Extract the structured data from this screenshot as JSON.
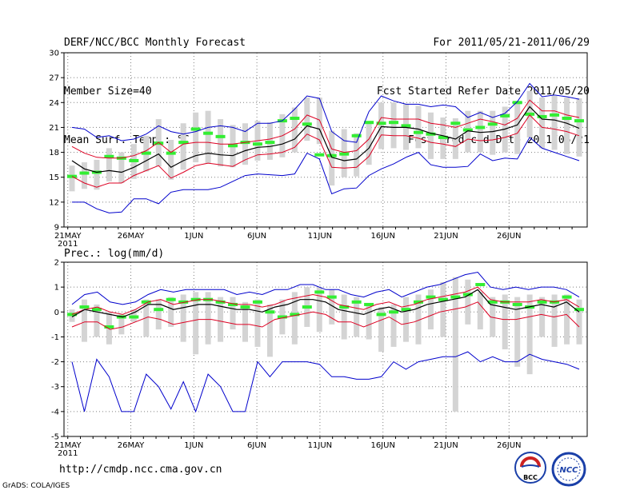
{
  "header": {
    "left": [
      "DERF/NCC/BCC Monthly Forecast",
      "Member Size=40",
      "Mean Surf. Temp.: °C"
    ],
    "right": [
      "For 2011/05/21-2011/06/29",
      "Fcst Started Refer Date 2011/05/20",
      "Fcst Produced Date 2011/05/21"
    ]
  },
  "footer": {
    "url": "http://cmdp.ncc.cma.gov.cn",
    "credit": "GrADS: COLA/IGES"
  },
  "logos": {
    "bcc": "BCC",
    "ncc": "NCC"
  },
  "chart_data": [
    {
      "type": "line",
      "title": "Mean Surf. Temp.: °C",
      "ylim": [
        9,
        30
      ],
      "yticks": [
        "9",
        "12",
        "15",
        "18",
        "21",
        "24",
        "27",
        "30"
      ],
      "xticks": [
        "21MAY",
        "26MAY",
        "1JUN",
        "6JUN",
        "11JUN",
        "16JUN",
        "21JUN",
        "26JUN"
      ],
      "xyear": "2011",
      "days": 40,
      "series": [
        {
          "name": "max",
          "values": [
            21.0,
            20.8,
            19.8,
            20.0,
            19.4,
            19.6,
            20.2,
            21.2,
            20.5,
            20.2,
            20.5,
            21.0,
            21.2,
            21.0,
            20.5,
            21.5,
            21.5,
            21.8,
            23.2,
            24.8,
            24.5,
            20.5,
            19.4,
            19.2,
            22.9,
            24.8,
            24.2,
            23.8,
            23.8,
            23.5,
            23.7,
            23.5,
            22.2,
            22.8,
            22.2,
            22.7,
            24.1,
            26.3,
            24.7,
            24.9,
            24.7,
            24.4
          ]
        },
        {
          "name": "upper",
          "values": [
            18.7,
            17.9,
            17.4,
            17.3,
            17.3,
            17.6,
            18.2,
            19.2,
            18.0,
            19.0,
            19.2,
            19.2,
            19.0,
            19.0,
            19.2,
            19.4,
            19.6,
            20.0,
            20.8,
            22.5,
            21.9,
            18.4,
            18.0,
            18.2,
            19.6,
            22.2,
            22.0,
            22.0,
            22.0,
            21.5,
            21.3,
            21.0,
            21.5,
            22.0,
            21.7,
            21.3,
            22.1,
            24.3,
            23.0,
            23.0,
            22.5,
            22.2
          ]
        },
        {
          "name": "mean",
          "values": [
            17.0,
            16.0,
            15.6,
            15.8,
            15.6,
            16.2,
            17.0,
            17.8,
            16.2,
            17.0,
            17.6,
            17.9,
            17.7,
            17.6,
            18.2,
            18.6,
            18.7,
            19.0,
            19.6,
            21.2,
            20.8,
            17.4,
            17.0,
            17.2,
            18.5,
            21.1,
            21.0,
            21.0,
            20.8,
            20.3,
            20.0,
            19.6,
            20.6,
            20.4,
            20.5,
            20.8,
            21.3,
            23.5,
            22.0,
            21.9,
            21.5,
            20.9
          ]
        },
        {
          "name": "lower",
          "values": [
            15.1,
            14.3,
            13.8,
            14.3,
            14.3,
            15.2,
            15.8,
            16.4,
            14.9,
            15.6,
            16.4,
            16.7,
            16.5,
            16.3,
            17.1,
            17.7,
            17.8,
            18.0,
            18.6,
            20.2,
            19.5,
            16.2,
            16.1,
            16.2,
            17.5,
            20.1,
            20.0,
            20.0,
            19.7,
            19.2,
            19.0,
            18.7,
            19.6,
            19.4,
            19.5,
            19.8,
            20.3,
            22.5,
            21.0,
            20.8,
            20.5,
            20.0
          ]
        },
        {
          "name": "min",
          "values": [
            12.0,
            12.0,
            11.2,
            10.7,
            10.8,
            12.4,
            12.4,
            11.8,
            13.2,
            13.5,
            13.5,
            13.5,
            13.8,
            14.5,
            15.2,
            15.4,
            15.3,
            15.2,
            15.4,
            17.9,
            17.2,
            13.0,
            13.6,
            13.7,
            15.2,
            16.0,
            16.6,
            17.4,
            18.0,
            16.5,
            16.2,
            16.2,
            16.3,
            17.8,
            17.0,
            17.3,
            17.2,
            19.8,
            18.5,
            18.0,
            17.5,
            17.0
          ]
        }
      ],
      "observed": [
        15.1,
        15.5,
        15.6,
        17.5,
        17.3,
        17.0,
        17.9,
        19.1,
        17.9,
        19.2,
        20.8,
        20.3,
        19.9,
        18.8,
        19.2,
        19.0,
        19.2,
        21.8,
        22.1,
        21.4,
        17.7,
        17.6,
        17.8,
        20.0,
        21.6,
        21.5,
        21.6,
        21.2,
        20.4,
        20.2,
        19.8,
        21.5,
        20.7,
        21.0,
        21.4,
        22.4,
        24.0,
        22.6,
        22.3,
        22.5,
        22.1,
        21.8
      ],
      "ranges": [
        [
          13.3,
          16.4
        ],
        [
          13.6,
          16.8
        ],
        [
          13.5,
          17.1
        ],
        [
          14.5,
          18.5
        ],
        [
          14.3,
          18.0
        ],
        [
          14.8,
          19.0
        ],
        [
          15.7,
          20.0
        ],
        [
          16.3,
          22.0
        ],
        [
          14.7,
          19.5
        ],
        [
          15.9,
          21.5
        ],
        [
          16.8,
          22.8
        ],
        [
          16.7,
          23.0
        ],
        [
          16.3,
          22.0
        ],
        [
          16.2,
          21.3
        ],
        [
          16.5,
          21.5
        ],
        [
          17.0,
          21.8
        ],
        [
          17.1,
          21.6
        ],
        [
          17.4,
          22.6
        ],
        [
          18.0,
          23.4
        ],
        [
          19.4,
          24.6
        ],
        [
          19.0,
          24.6
        ],
        [
          14.0,
          20.6
        ],
        [
          15.0,
          20.8
        ],
        [
          15.1,
          20.3
        ],
        [
          16.5,
          21.6
        ],
        [
          18.4,
          24.0
        ],
        [
          18.5,
          24.0
        ],
        [
          18.3,
          23.8
        ],
        [
          18.5,
          23.6
        ],
        [
          17.2,
          22.8
        ],
        [
          17.2,
          22.2
        ],
        [
          17.2,
          22.1
        ],
        [
          18.0,
          23.0
        ],
        [
          18.0,
          23.0
        ],
        [
          17.7,
          23.0
        ],
        [
          18.0,
          23.5
        ],
        [
          17.8,
          24.0
        ],
        [
          19.8,
          25.4
        ],
        [
          18.5,
          24.6
        ],
        [
          18.3,
          24.8
        ],
        [
          17.8,
          24.6
        ],
        [
          17.5,
          24.5
        ]
      ]
    },
    {
      "type": "line",
      "title": "Prec.: log(mm/d)",
      "ylim": [
        -5,
        2
      ],
      "yticks": [
        "-5",
        "-4",
        "-3",
        "-2",
        "-1",
        "0",
        "1",
        "2"
      ],
      "xticks": [
        "21MAY",
        "26MAY",
        "1JUN",
        "6JUN",
        "11JUN",
        "16JUN",
        "21JUN",
        "26JUN"
      ],
      "xyear": "2011",
      "days": 40,
      "series": [
        {
          "name": "max",
          "values": [
            0.3,
            0.7,
            0.8,
            0.4,
            0.3,
            0.4,
            0.7,
            0.9,
            0.8,
            0.9,
            0.9,
            0.9,
            0.9,
            0.7,
            0.8,
            0.7,
            0.9,
            0.9,
            1.1,
            1.1,
            0.9,
            0.9,
            0.7,
            0.6,
            0.8,
            0.9,
            0.6,
            0.8,
            1.0,
            1.1,
            1.3,
            1.5,
            1.6,
            1.0,
            0.9,
            1.0,
            0.9,
            1.0,
            1.0,
            0.9,
            0.6
          ]
        },
        {
          "name": "upper",
          "values": [
            -0.1,
            0.1,
            0.2,
            0.0,
            -0.1,
            0.1,
            0.4,
            0.5,
            0.3,
            0.4,
            0.5,
            0.5,
            0.4,
            0.3,
            0.3,
            0.2,
            0.3,
            0.5,
            0.6,
            0.7,
            0.6,
            0.3,
            0.2,
            0.1,
            0.3,
            0.4,
            0.2,
            0.3,
            0.5,
            0.6,
            0.7,
            0.8,
            1.0,
            0.5,
            0.4,
            0.4,
            0.4,
            0.5,
            0.4,
            0.5,
            0.2
          ]
        },
        {
          "name": "mean",
          "values": [
            -0.2,
            0.1,
            0.0,
            -0.1,
            -0.2,
            0.0,
            0.3,
            0.3,
            0.1,
            0.2,
            0.3,
            0.3,
            0.2,
            0.1,
            0.1,
            0.0,
            0.2,
            0.3,
            0.5,
            0.5,
            0.4,
            0.1,
            0.0,
            -0.1,
            0.1,
            0.2,
            0.0,
            0.1,
            0.3,
            0.4,
            0.5,
            0.6,
            0.9,
            0.3,
            0.2,
            0.1,
            0.2,
            0.3,
            0.2,
            0.4,
            0.0
          ]
        },
        {
          "name": "lower",
          "values": [
            -0.6,
            -0.4,
            -0.4,
            -0.7,
            -0.6,
            -0.4,
            -0.2,
            -0.3,
            -0.5,
            -0.4,
            -0.3,
            -0.3,
            -0.4,
            -0.5,
            -0.5,
            -0.6,
            -0.3,
            -0.2,
            -0.1,
            0.0,
            -0.1,
            -0.4,
            -0.4,
            -0.6,
            -0.4,
            -0.2,
            -0.5,
            -0.4,
            -0.2,
            0.0,
            0.1,
            0.2,
            0.4,
            -0.2,
            -0.3,
            -0.3,
            -0.2,
            -0.1,
            -0.2,
            -0.1,
            -0.6
          ]
        },
        {
          "name": "min",
          "values": [
            -2.0,
            -4.0,
            -1.9,
            -2.6,
            -4.0,
            -4.0,
            -2.5,
            -3.0,
            -3.9,
            -2.8,
            -4.0,
            -2.5,
            -3.0,
            -4.0,
            -4.0,
            -2.0,
            -2.6,
            -2.0,
            -2.0,
            -2.0,
            -2.1,
            -2.6,
            -2.6,
            -2.7,
            -2.7,
            -2.6,
            -2.0,
            -2.3,
            -2.0,
            -1.9,
            -1.8,
            -1.8,
            -1.6,
            -2.0,
            -1.8,
            -2.0,
            -2.0,
            -1.7,
            -1.9,
            -2.0,
            -2.1,
            -2.3
          ]
        }
      ],
      "observed": [
        -0.1,
        0.2,
        0.1,
        -0.6,
        -0.2,
        -0.2,
        0.4,
        0.1,
        0.5,
        0.4,
        0.5,
        0.5,
        0.4,
        0.3,
        0.2,
        0.4,
        0.0,
        -0.2,
        -0.1,
        0.2,
        0.8,
        0.6,
        0.2,
        0.4,
        0.3,
        -0.1,
        0.0,
        0.1,
        0.4,
        0.6,
        0.5,
        0.6,
        0.7,
        1.1,
        0.4,
        0.4,
        0.3,
        0.2,
        0.4,
        0.4,
        0.6,
        0.1
      ],
      "ranges": [
        [
          -0.4,
          0.1
        ],
        [
          -1.2,
          0.5
        ],
        [
          -1.0,
          0.3
        ],
        [
          -1.3,
          0.0
        ],
        [
          -0.9,
          -0.1
        ],
        [
          -0.4,
          0.1
        ],
        [
          -1.0,
          0.5
        ],
        [
          -0.7,
          0.5
        ],
        [
          -0.6,
          0.6
        ],
        [
          -1.2,
          0.7
        ],
        [
          -1.7,
          0.8
        ],
        [
          -1.3,
          0.8
        ],
        [
          -1.2,
          0.6
        ],
        [
          -0.7,
          0.6
        ],
        [
          -1.2,
          0.4
        ],
        [
          -1.4,
          0.5
        ],
        [
          -1.8,
          0.3
        ],
        [
          -0.9,
          0.5
        ],
        [
          -1.3,
          0.8
        ],
        [
          -0.6,
          1.0
        ],
        [
          -0.8,
          1.0
        ],
        [
          -0.5,
          0.9
        ],
        [
          -1.1,
          0.7
        ],
        [
          -1.0,
          0.6
        ],
        [
          -1.1,
          0.3
        ],
        [
          -1.6,
          0.2
        ],
        [
          -1.4,
          0.3
        ],
        [
          -1.2,
          0.6
        ],
        [
          -1.3,
          0.7
        ],
        [
          -0.7,
          0.9
        ],
        [
          -1.0,
          1.2
        ],
        [
          -4.0,
          1.4
        ],
        [
          -0.5,
          1.3
        ],
        [
          -0.7,
          0.8
        ],
        [
          -1.0,
          0.6
        ],
        [
          -1.5,
          0.7
        ],
        [
          -2.2,
          0.6
        ],
        [
          -2.5,
          0.7
        ],
        [
          -1.0,
          0.6
        ],
        [
          -1.4,
          0.7
        ],
        [
          -1.3,
          0.7
        ],
        [
          -1.3,
          0.5
        ]
      ]
    }
  ],
  "colors": {
    "envelope": "#0000cc",
    "spread": "#dd0022",
    "mean": "#000000",
    "observed": "#33ee33",
    "range": "#d4d4d4",
    "grid": "#808080",
    "logo_bcc": "#cc2222",
    "logo_ncc": "#1a3fa8"
  }
}
